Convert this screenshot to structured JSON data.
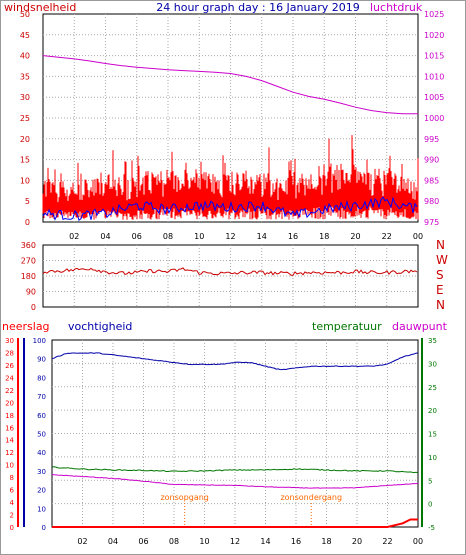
{
  "header": {
    "left_label": "windsnelheid",
    "title": "24 hour graph day : 16 January 2019",
    "right_label": "luchtdruk"
  },
  "colors": {
    "wind": "#ff0000",
    "gust": "#0000ff",
    "pressure": "#cc00cc",
    "direction": "#cc0000",
    "humidity": "#0000aa",
    "temperature": "#007700",
    "dewpoint": "#cc00cc",
    "rain": "#ff0000",
    "sun_marker": "#ff6600",
    "axis_left": "#cc0000",
    "axis_right": "#cc00cc",
    "axis_humidity": "#0000aa",
    "axis_temperature": "#007700",
    "grid": "#aaaaaa"
  },
  "chart_data": [
    {
      "type": "line",
      "id": "wind_pressure",
      "y_ticks": [
        "0",
        "5",
        "10",
        "15",
        "20",
        "25",
        "30",
        "35",
        "40",
        "45",
        "50"
      ],
      "ylim": [
        0,
        50
      ],
      "y2_ticks": [
        "975",
        "980",
        "985",
        "990",
        "995",
        "1000",
        "1005",
        "1010",
        "1015",
        "1020",
        "1025"
      ],
      "y2lim": [
        975,
        1025
      ],
      "x_ticks": [
        "02",
        "04",
        "06",
        "08",
        "10",
        "12",
        "14",
        "16",
        "18",
        "20",
        "22",
        "00"
      ],
      "x_hours": [
        0,
        24
      ],
      "pressure": {
        "hours": [
          0,
          1,
          2,
          3,
          4,
          5,
          6,
          7,
          8,
          9,
          10,
          11,
          12,
          13,
          14,
          15,
          16,
          17,
          18,
          19,
          20,
          21,
          22,
          23,
          24
        ],
        "values": [
          1015.0,
          1014.6,
          1014.2,
          1013.7,
          1013.1,
          1012.6,
          1012.2,
          1011.9,
          1011.6,
          1011.4,
          1011.2,
          1011.0,
          1010.7,
          1010.0,
          1009.0,
          1007.6,
          1006.2,
          1005.2,
          1004.5,
          1003.6,
          1002.6,
          1001.8,
          1001.3,
          1001.0,
          1001.0
        ]
      },
      "wind_envelope": {
        "hours": [
          0,
          2,
          4,
          5,
          6,
          8,
          10,
          12,
          14,
          16,
          18,
          20,
          22,
          23,
          24
        ],
        "values": [
          10,
          9,
          10,
          9,
          11,
          12,
          11,
          12,
          11,
          10,
          13,
          13,
          12,
          11,
          9
        ]
      },
      "gust_baseline": {
        "hours": [
          0,
          2,
          4,
          6,
          8,
          10,
          12,
          14,
          16,
          18,
          20,
          22,
          24
        ],
        "values": [
          2,
          1.5,
          2,
          4,
          3,
          4,
          3.5,
          4,
          1.5,
          3,
          4,
          5,
          3
        ]
      }
    },
    {
      "type": "line",
      "id": "wind_direction",
      "y_ticks": [
        "0",
        "90",
        "180",
        "270",
        "360"
      ],
      "ylim": [
        0,
        360
      ],
      "compass": [
        "N",
        "W",
        "S",
        "E",
        "N"
      ],
      "hours": [
        0,
        1,
        2,
        3,
        4,
        5,
        6,
        7,
        8,
        9,
        10,
        11,
        12,
        13,
        14,
        15,
        16,
        17,
        18,
        19,
        20,
        21,
        22,
        23,
        24
      ],
      "values": [
        205,
        210,
        215,
        225,
        205,
        195,
        200,
        210,
        205,
        220,
        200,
        195,
        195,
        200,
        200,
        195,
        195,
        200,
        200,
        200,
        205,
        200,
        200,
        205,
        210
      ]
    },
    {
      "type": "line",
      "id": "humidity_temperature",
      "left_label": "neerslag",
      "center_label": "vochtigheid",
      "right_labels": [
        "temperatuur",
        "dauwpunt"
      ],
      "rain_ticks": [
        "0",
        "2",
        "4",
        "6",
        "8",
        "10",
        "12",
        "14",
        "16",
        "18",
        "20",
        "22",
        "24",
        "26",
        "28",
        "30"
      ],
      "humidity_ticks": [
        "0",
        "10",
        "20",
        "30",
        "40",
        "50",
        "60",
        "70",
        "80",
        "90",
        "100"
      ],
      "temp_ticks": [
        "-5",
        "0",
        "5",
        "10",
        "15",
        "20",
        "25",
        "30",
        "35"
      ],
      "templim": [
        -5,
        35
      ],
      "humlim": [
        0,
        100
      ],
      "x_ticks": [
        "02",
        "04",
        "06",
        "08",
        "10",
        "12",
        "14",
        "16",
        "18",
        "20",
        "22",
        "00"
      ],
      "humidity": {
        "hours": [
          0,
          1,
          2,
          3,
          4,
          5,
          6,
          7,
          8,
          9,
          10,
          11,
          12,
          13,
          14,
          15,
          16,
          17,
          18,
          19,
          20,
          21,
          22,
          23,
          24
        ],
        "values": [
          90,
          93,
          93,
          93,
          92,
          91,
          90,
          89,
          88,
          87,
          87,
          87,
          88,
          88,
          86,
          84,
          85,
          86,
          86,
          86,
          86,
          86,
          87,
          91,
          93
        ]
      },
      "temperature": {
        "hours": [
          0,
          2,
          4,
          6,
          8,
          10,
          12,
          14,
          16,
          18,
          20,
          22,
          24
        ],
        "values": [
          7.8,
          7.4,
          7.2,
          7.1,
          6.9,
          7.0,
          7.2,
          7.2,
          7.4,
          7.2,
          7.0,
          7.0,
          6.6
        ]
      },
      "dewpoint": {
        "hours": [
          0,
          2,
          4,
          6,
          8,
          10,
          12,
          14,
          16,
          18,
          20,
          22,
          24
        ],
        "values": [
          6.2,
          5.8,
          5.4,
          4.8,
          4.1,
          4.0,
          3.9,
          3.6,
          3.4,
          3.3,
          3.4,
          3.9,
          4.3
        ]
      },
      "rain": {
        "hours": [
          0,
          22,
          23,
          23.5,
          24
        ],
        "values": [
          0,
          0,
          0.2,
          0.4,
          0.4
        ]
      },
      "events": [
        {
          "label": "zonsopgang",
          "hour": 8.7
        },
        {
          "label": "zonsondergang",
          "hour": 17.0
        }
      ]
    }
  ]
}
